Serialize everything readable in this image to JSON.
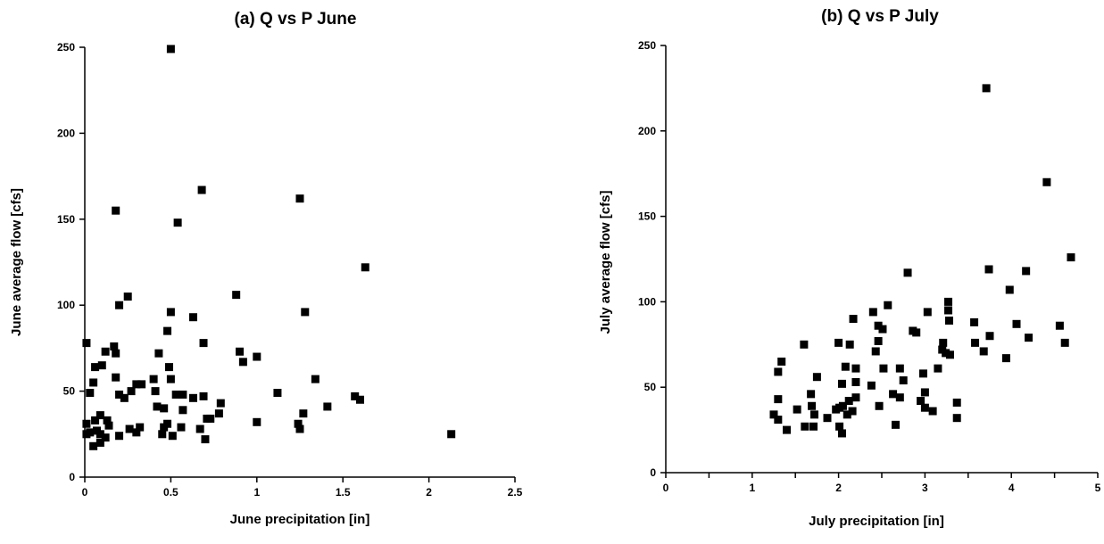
{
  "chart_data": [
    {
      "type": "scatter",
      "title": "(a)  Q vs P   June",
      "xlabel": "June precipitation  [in]",
      "ylabel": "June average flow  [cfs]",
      "xlim": [
        0,
        2.5
      ],
      "ylim": [
        0,
        250
      ],
      "xticks": [
        0,
        0.5,
        1,
        1.5,
        2,
        2.5
      ],
      "xtick_labels": [
        "0",
        "0.5",
        "1",
        "1.5",
        "2",
        "2.5"
      ],
      "yticks": [
        0,
        50,
        100,
        150,
        200,
        250
      ],
      "ytick_labels": [
        "0",
        "50",
        "100",
        "150",
        "200",
        "250"
      ],
      "grid": false,
      "marker": "square",
      "marker_color": "#000000",
      "points": [
        [
          0.5,
          249
        ],
        [
          0.18,
          155
        ],
        [
          0.68,
          167
        ],
        [
          1.25,
          162
        ],
        [
          0.54,
          148
        ],
        [
          1.63,
          122
        ],
        [
          0.25,
          105
        ],
        [
          0.88,
          106
        ],
        [
          0.2,
          100
        ],
        [
          1.28,
          96
        ],
        [
          0.5,
          96
        ],
        [
          0.63,
          93
        ],
        [
          0.48,
          85
        ],
        [
          0.01,
          78
        ],
        [
          0.69,
          78
        ],
        [
          0.17,
          76
        ],
        [
          0.18,
          72
        ],
        [
          0.12,
          73
        ],
        [
          0.43,
          72
        ],
        [
          0.9,
          73
        ],
        [
          1.0,
          70
        ],
        [
          0.92,
          67
        ],
        [
          0.1,
          65
        ],
        [
          0.06,
          64
        ],
        [
          0.49,
          64
        ],
        [
          0.18,
          58
        ],
        [
          0.4,
          57
        ],
        [
          0.5,
          57
        ],
        [
          1.34,
          57
        ],
        [
          0.05,
          55
        ],
        [
          0.3,
          54
        ],
        [
          0.33,
          54
        ],
        [
          0.27,
          50
        ],
        [
          0.41,
          50
        ],
        [
          0.03,
          49
        ],
        [
          1.12,
          49
        ],
        [
          0.57,
          48
        ],
        [
          0.2,
          48
        ],
        [
          0.53,
          48
        ],
        [
          0.69,
          47
        ],
        [
          1.57,
          47
        ],
        [
          0.23,
          46
        ],
        [
          0.63,
          46
        ],
        [
          1.6,
          45
        ],
        [
          0.79,
          43
        ],
        [
          0.42,
          41
        ],
        [
          1.41,
          41
        ],
        [
          0.46,
          40
        ],
        [
          0.57,
          39
        ],
        [
          0.78,
          37
        ],
        [
          0.09,
          36
        ],
        [
          1.27,
          37
        ],
        [
          0.71,
          34
        ],
        [
          0.73,
          34
        ],
        [
          0.06,
          33
        ],
        [
          0.13,
          33
        ],
        [
          1.0,
          32
        ],
        [
          0.01,
          31
        ],
        [
          0.48,
          31
        ],
        [
          1.24,
          31
        ],
        [
          0.14,
          30
        ],
        [
          0.32,
          29
        ],
        [
          0.56,
          29
        ],
        [
          0.46,
          29
        ],
        [
          0.26,
          28
        ],
        [
          0.67,
          28
        ],
        [
          1.25,
          28
        ],
        [
          0.07,
          27
        ],
        [
          0.03,
          26
        ],
        [
          0.3,
          26
        ],
        [
          0.01,
          25
        ],
        [
          0.09,
          25
        ],
        [
          0.45,
          25
        ],
        [
          0.51,
          24
        ],
        [
          0.2,
          24
        ],
        [
          2.13,
          25
        ],
        [
          0.12,
          23
        ],
        [
          0.7,
          22
        ],
        [
          0.09,
          20
        ],
        [
          0.05,
          18
        ]
      ]
    },
    {
      "type": "scatter",
      "title": "(b)  Q vs P   July",
      "xlabel": "July precipitation    [in]",
      "ylabel": "July average flow  [cfs]",
      "xlim": [
        0,
        5
      ],
      "ylim": [
        0,
        250
      ],
      "xticks": [
        0,
        0.5,
        1,
        1.5,
        2,
        2.5,
        3,
        3.5,
        4,
        4.5,
        5
      ],
      "xtick_labels": [
        "0",
        "",
        "1",
        "",
        "2",
        "",
        "3",
        "",
        "4",
        "",
        "5"
      ],
      "yticks": [
        0,
        50,
        100,
        150,
        200,
        250
      ],
      "ytick_labels": [
        "0",
        "50",
        "100",
        "150",
        "200",
        "250"
      ],
      "grid": false,
      "marker": "square",
      "marker_color": "#000000",
      "points": [
        [
          3.71,
          225
        ],
        [
          4.41,
          170
        ],
        [
          4.69,
          126
        ],
        [
          3.74,
          119
        ],
        [
          4.17,
          118
        ],
        [
          2.8,
          117
        ],
        [
          3.98,
          107
        ],
        [
          3.27,
          100
        ],
        [
          2.57,
          98
        ],
        [
          3.27,
          95
        ],
        [
          2.4,
          94
        ],
        [
          3.03,
          94
        ],
        [
          2.17,
          90
        ],
        [
          3.28,
          89
        ],
        [
          3.57,
          88
        ],
        [
          2.46,
          86
        ],
        [
          4.06,
          87
        ],
        [
          4.56,
          86
        ],
        [
          2.51,
          84
        ],
        [
          2.86,
          83
        ],
        [
          2.9,
          82
        ],
        [
          3.75,
          80
        ],
        [
          4.2,
          79
        ],
        [
          2.46,
          77
        ],
        [
          3.21,
          76
        ],
        [
          3.58,
          76
        ],
        [
          4.62,
          76
        ],
        [
          1.6,
          75
        ],
        [
          2.0,
          76
        ],
        [
          2.13,
          75
        ],
        [
          3.68,
          71
        ],
        [
          2.43,
          71
        ],
        [
          3.2,
          72
        ],
        [
          3.24,
          70
        ],
        [
          3.29,
          69
        ],
        [
          3.94,
          67
        ],
        [
          1.34,
          65
        ],
        [
          2.08,
          62
        ],
        [
          2.2,
          61
        ],
        [
          2.52,
          61
        ],
        [
          2.71,
          61
        ],
        [
          3.15,
          61
        ],
        [
          1.3,
          59
        ],
        [
          1.75,
          56
        ],
        [
          2.98,
          58
        ],
        [
          2.75,
          54
        ],
        [
          2.2,
          53
        ],
        [
          2.04,
          52
        ],
        [
          2.38,
          51
        ],
        [
          1.68,
          46
        ],
        [
          2.63,
          46
        ],
        [
          2.71,
          44
        ],
        [
          3.0,
          47
        ],
        [
          1.3,
          43
        ],
        [
          2.2,
          44
        ],
        [
          2.12,
          42
        ],
        [
          2.95,
          42
        ],
        [
          3.37,
          41
        ],
        [
          1.69,
          39
        ],
        [
          2.47,
          39
        ],
        [
          3.0,
          38
        ],
        [
          2.01,
          38
        ],
        [
          2.05,
          39
        ],
        [
          1.52,
          37
        ],
        [
          1.97,
          37
        ],
        [
          2.16,
          36
        ],
        [
          3.09,
          36
        ],
        [
          1.25,
          34
        ],
        [
          1.72,
          34
        ],
        [
          2.1,
          34
        ],
        [
          1.87,
          32
        ],
        [
          3.37,
          32
        ],
        [
          1.3,
          31
        ],
        [
          2.66,
          28
        ],
        [
          1.61,
          27
        ],
        [
          1.71,
          27
        ],
        [
          2.01,
          27
        ],
        [
          1.4,
          25
        ],
        [
          2.04,
          23
        ]
      ]
    }
  ]
}
